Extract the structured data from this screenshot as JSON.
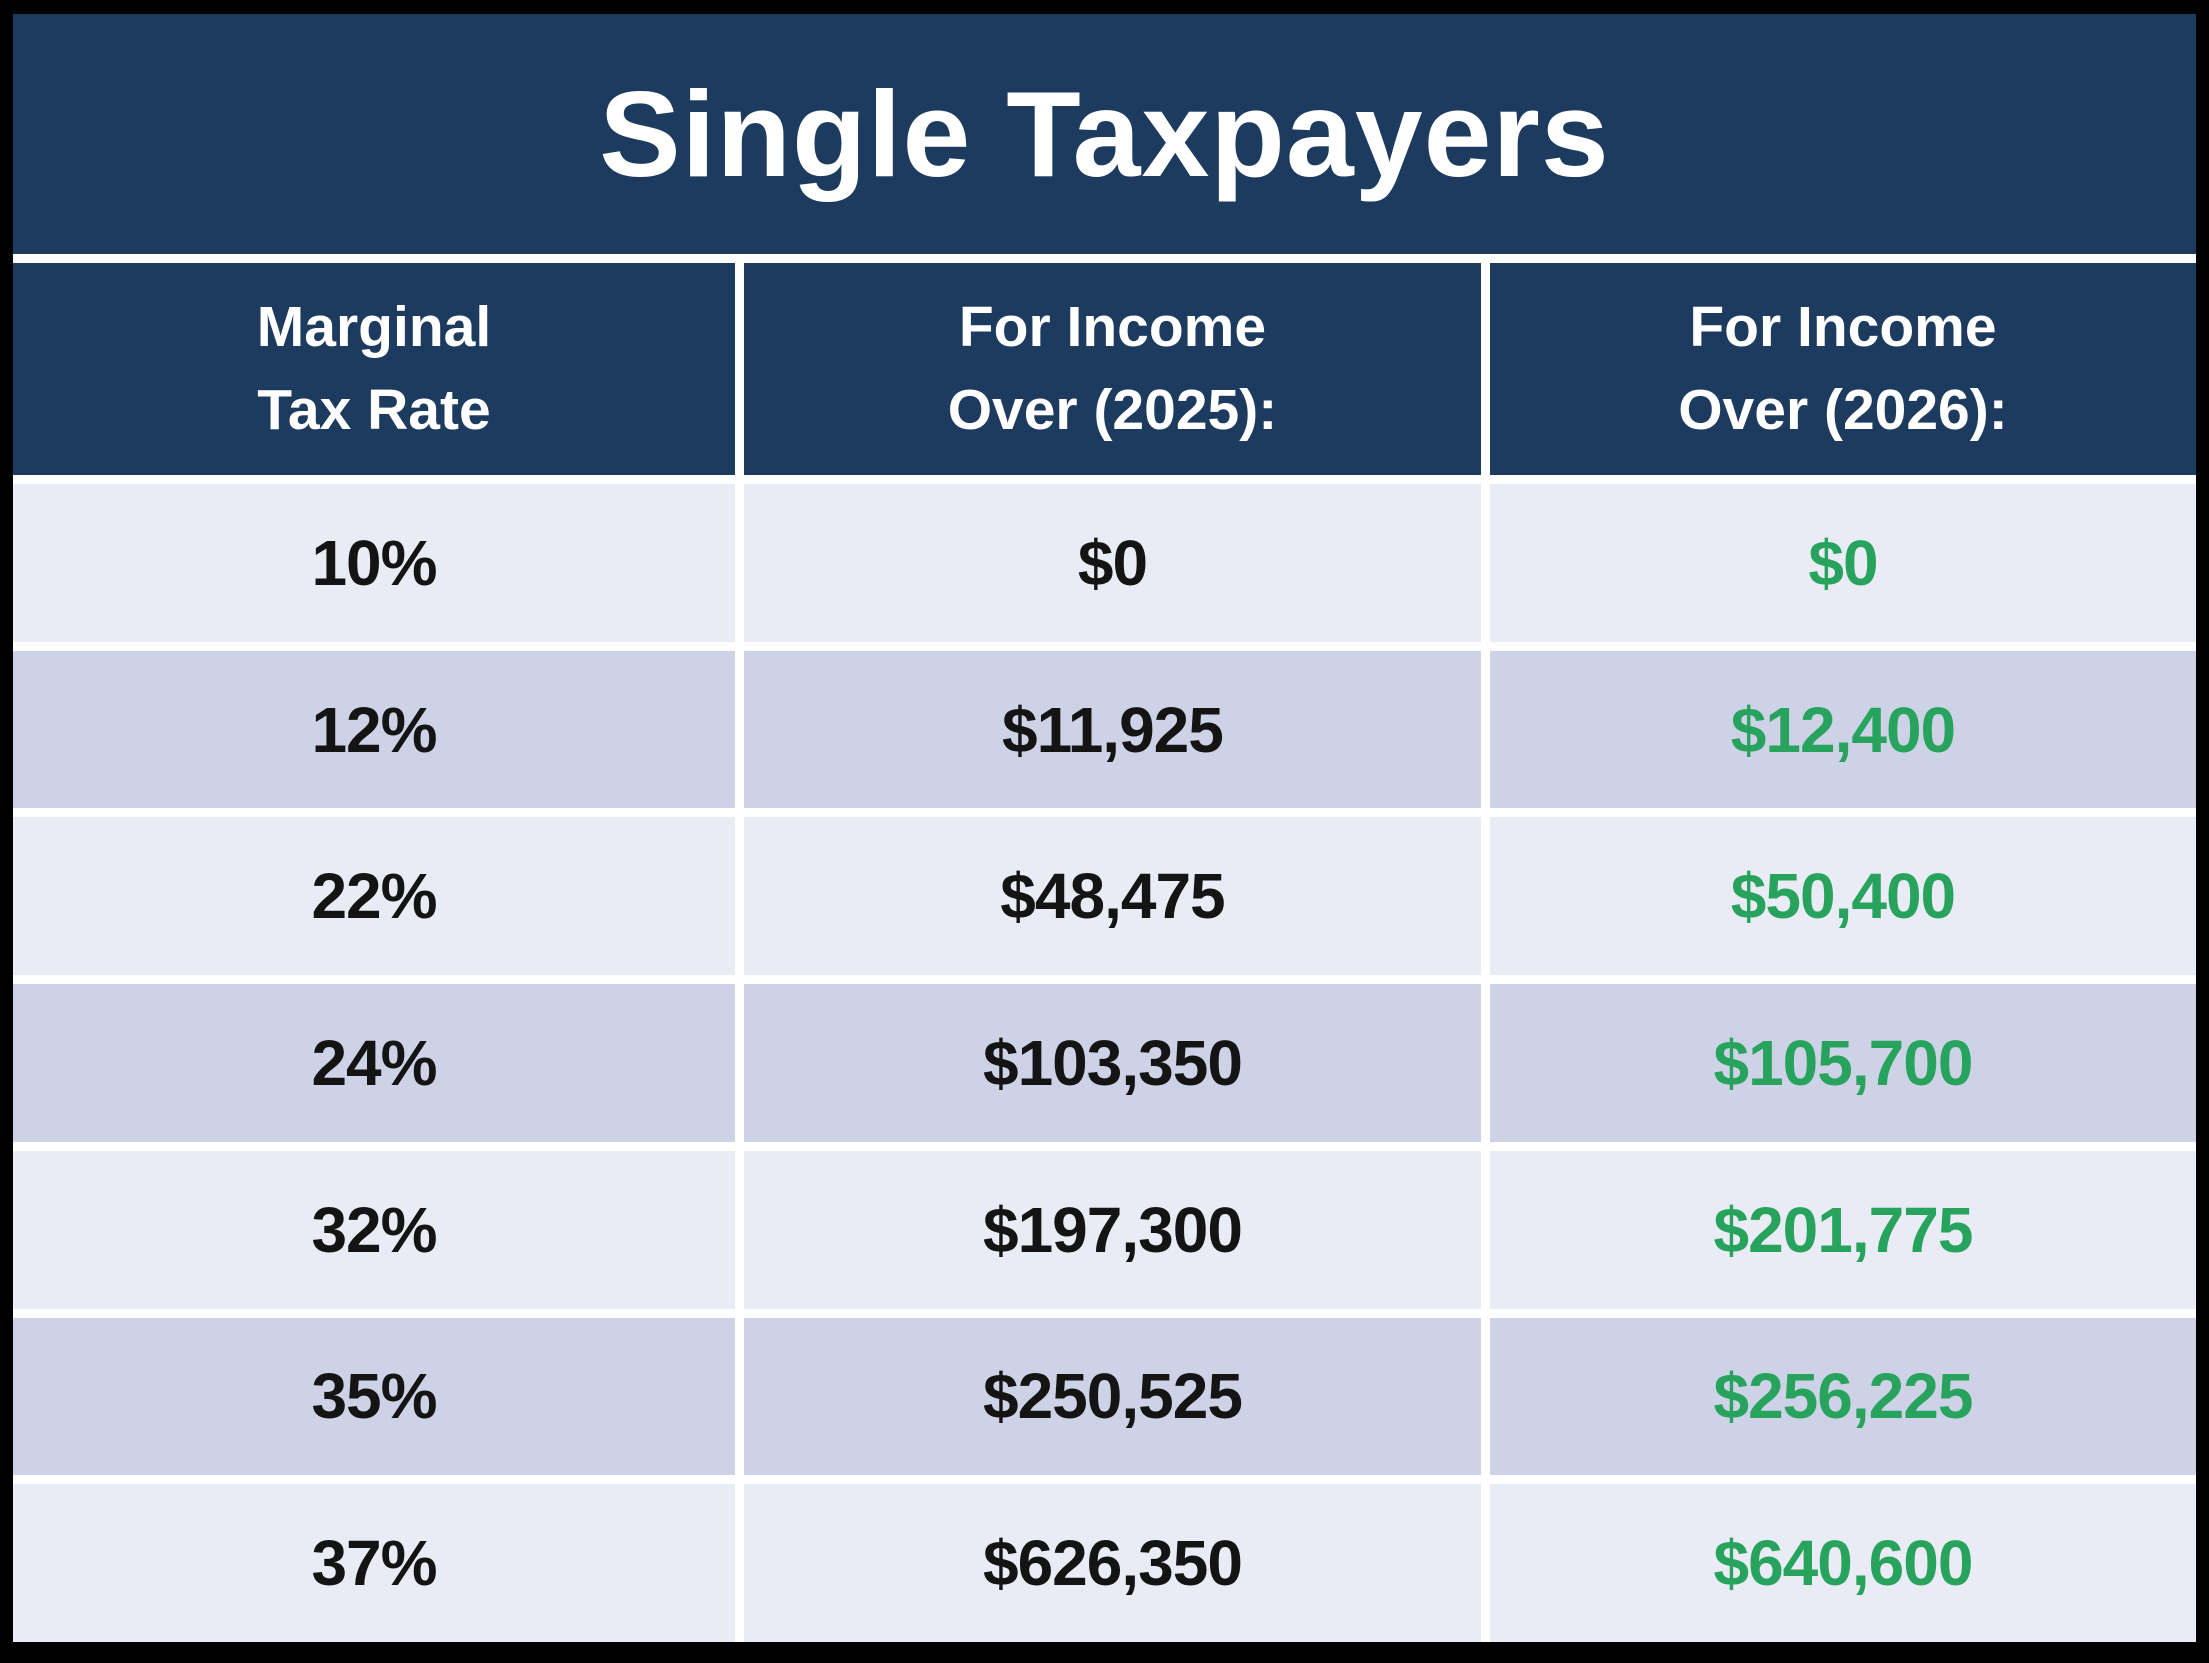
{
  "title": "Single Taxpayers",
  "header": {
    "col_rate": "Marginal\nTax Rate",
    "col_2025": "For Income\nOver (2025):",
    "col_2026": "For Income\nOver (2026):"
  },
  "rows": [
    {
      "rate": "10%",
      "y2025": "$0",
      "y2026": "$0"
    },
    {
      "rate": "12%",
      "y2025": "$11,925",
      "y2026": "$12,400"
    },
    {
      "rate": "22%",
      "y2025": "$48,475",
      "y2026": "$50,400"
    },
    {
      "rate": "24%",
      "y2025": "$103,350",
      "y2026": "$105,700"
    },
    {
      "rate": "32%",
      "y2025": "$197,300",
      "y2026": "$201,775"
    },
    {
      "rate": "35%",
      "y2025": "$250,525",
      "y2026": "$256,225"
    },
    {
      "rate": "37%",
      "y2025": "$626,350",
      "y2026": "$640,600"
    }
  ],
  "colors": {
    "header_bg": "#1d3a5f",
    "row_light": "#e9ebf5",
    "row_dark": "#cdd2e7",
    "value_2026_green": "#28a35e",
    "value_text": "#141414",
    "title_text": "#ffffff",
    "frame": "#000000",
    "separator": "#ffffff"
  },
  "chart_data": {
    "type": "table",
    "title": "Single Taxpayers",
    "columns": [
      "Marginal Tax Rate",
      "For Income Over (2025):",
      "For Income Over (2026):"
    ],
    "rows": [
      [
        "10%",
        "$0",
        "$0"
      ],
      [
        "12%",
        "$11,925",
        "$12,400"
      ],
      [
        "22%",
        "$48,475",
        "$50,400"
      ],
      [
        "24%",
        "$103,350",
        "$105,700"
      ],
      [
        "32%",
        "$197,300",
        "$201,775"
      ],
      [
        "35%",
        "$250,525",
        "$256,225"
      ],
      [
        "37%",
        "$626,350",
        "$640,600"
      ]
    ],
    "notes": "2026 column values rendered in green; rows alternate light/dark lavender backgrounds"
  }
}
